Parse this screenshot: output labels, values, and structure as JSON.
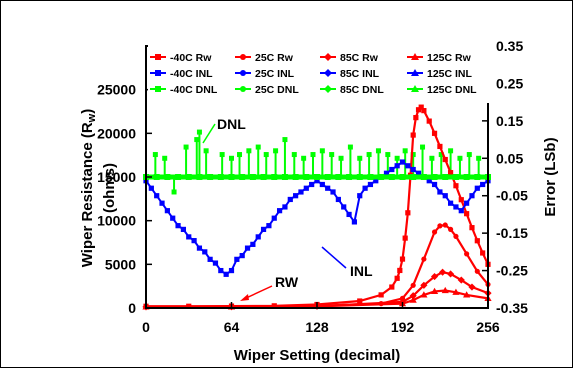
{
  "chart_data": {
    "type": "line",
    "xlabel": "Wiper Setting (decimal)",
    "ylabel_left": "Wiper Resistance (R w) (ohms)",
    "ylabel_left_line1": "Wiper Resistance (R",
    "ylabel_left_sub": "w",
    "ylabel_left_close": ")",
    "ylabel_left_line2": "(ohms)",
    "ylabel_right": "Error (LSb)",
    "xlim": [
      0,
      256
    ],
    "ylim_left": [
      0,
      30000
    ],
    "ylim_right": [
      -0.35,
      0.35
    ],
    "xticks": [
      "0",
      "64",
      "128",
      "192",
      "256"
    ],
    "xtick_values": [
      0,
      64,
      128,
      192,
      256
    ],
    "yticks_left": [
      "0",
      "5000",
      "10000",
      "15000",
      "20000",
      "25000"
    ],
    "ytick_left_values": [
      0,
      5000,
      10000,
      15000,
      20000,
      25000
    ],
    "yticks_right": [
      "0.35",
      "0.25",
      "0.15",
      "0.05",
      "-0.05",
      "-0.15",
      "-0.25",
      "-0.35"
    ],
    "ytick_right_values": [
      0.35,
      0.25,
      0.15,
      0.05,
      -0.05,
      -0.15,
      -0.25,
      -0.35
    ],
    "grid": false,
    "legend_position": "top-right",
    "legend_columns": 4,
    "annotations": [
      {
        "text": "DNL",
        "x": 40,
        "y": 18800,
        "axis": "left"
      },
      {
        "text": "INL",
        "x": 152,
        "y": 3100,
        "axis": "left"
      },
      {
        "text": "RW",
        "x": 90,
        "y": 2000,
        "axis": "left"
      }
    ],
    "series": [
      {
        "name": "-40C Rw",
        "color": "#ff0000",
        "marker": "square",
        "axis": "left",
        "x": [
          0,
          32,
          64,
          96,
          128,
          160,
          176,
          184,
          188,
          190,
          192,
          194,
          196,
          198,
          200,
          202,
          204,
          206,
          208,
          212,
          216,
          220,
          224,
          228,
          232,
          236,
          240,
          244,
          248,
          252,
          256
        ],
        "y": [
          200,
          200,
          220,
          250,
          400,
          800,
          1500,
          2400,
          3400,
          4300,
          5600,
          8000,
          10900,
          15200,
          19800,
          21800,
          22700,
          23000,
          22600,
          21400,
          20000,
          18500,
          17000,
          15500,
          14000,
          12400,
          10800,
          9200,
          7700,
          6300,
          5000
        ]
      },
      {
        "name": "25C Rw",
        "color": "#ff0000",
        "marker": "circle",
        "axis": "left",
        "x": [
          0,
          64,
          128,
          176,
          192,
          200,
          208,
          216,
          220,
          224,
          228,
          232,
          240,
          248,
          256
        ],
        "y": [
          150,
          160,
          250,
          500,
          1100,
          2600,
          5600,
          8700,
          9400,
          9500,
          9000,
          8200,
          6200,
          4200,
          2700
        ]
      },
      {
        "name": "85C Rw",
        "color": "#ff0000",
        "marker": "diamond",
        "axis": "left",
        "x": [
          0,
          64,
          128,
          192,
          200,
          208,
          216,
          222,
          228,
          236,
          244,
          256
        ],
        "y": [
          130,
          140,
          200,
          700,
          1400,
          2600,
          3600,
          4100,
          3900,
          3200,
          2400,
          1700
        ]
      },
      {
        "name": "125C Rw",
        "color": "#ff0000",
        "marker": "triangle",
        "axis": "left",
        "x": [
          0,
          64,
          128,
          192,
          200,
          208,
          216,
          224,
          232,
          240,
          256
        ],
        "y": [
          120,
          130,
          180,
          500,
          900,
          1500,
          1900,
          2000,
          1800,
          1500,
          1100
        ]
      },
      {
        "name": "-40C INL",
        "color": "#0000ff",
        "marker": "square",
        "axis": "right",
        "x": [
          0,
          4,
          8,
          12,
          16,
          20,
          24,
          28,
          32,
          36,
          40,
          44,
          48,
          52,
          56,
          60,
          64,
          68,
          72,
          76,
          80,
          84,
          88,
          92,
          96,
          100,
          104,
          108,
          112,
          116,
          120,
          124,
          128,
          132,
          136,
          140,
          144,
          148,
          152,
          156,
          160,
          164,
          168,
          172,
          176,
          180,
          184,
          188,
          192,
          196,
          200,
          204,
          208,
          212,
          216,
          220,
          224,
          228,
          232,
          236,
          240,
          244,
          248,
          252,
          256
        ],
        "y": [
          -0.01,
          -0.03,
          -0.05,
          -0.07,
          -0.09,
          -0.11,
          -0.13,
          -0.14,
          -0.16,
          -0.17,
          -0.19,
          -0.2,
          -0.22,
          -0.23,
          -0.25,
          -0.26,
          -0.25,
          -0.22,
          -0.21,
          -0.19,
          -0.18,
          -0.16,
          -0.14,
          -0.13,
          -0.11,
          -0.09,
          -0.08,
          -0.06,
          -0.05,
          -0.04,
          -0.03,
          -0.02,
          -0.01,
          -0.02,
          -0.03,
          -0.04,
          -0.06,
          -0.08,
          -0.1,
          -0.12,
          -0.05,
          -0.03,
          -0.02,
          -0.01,
          0.0,
          0.01,
          0.02,
          0.03,
          0.04,
          0.03,
          0.02,
          0.01,
          0.0,
          -0.01,
          -0.02,
          -0.04,
          -0.05,
          -0.07,
          -0.08,
          -0.09,
          -0.07,
          -0.05,
          -0.03,
          -0.02,
          -0.01
        ]
      },
      {
        "name": "25C INL",
        "color": "#0000ff",
        "marker": "circle",
        "axis": "right"
      },
      {
        "name": "85C INL",
        "color": "#0000ff",
        "marker": "diamond",
        "axis": "right"
      },
      {
        "name": "125C INL",
        "color": "#0000ff",
        "marker": "triangle",
        "axis": "right"
      },
      {
        "name": "-40C DNL",
        "color": "#00ff00",
        "marker": "square",
        "axis": "right",
        "x": [
          0,
          8,
          16,
          24,
          32,
          40,
          48,
          56,
          64,
          72,
          80,
          88,
          96,
          104,
          112,
          120,
          128,
          136,
          144,
          152,
          160,
          168,
          176,
          184,
          192,
          200,
          208,
          216,
          224,
          232,
          240,
          248,
          256
        ],
        "y": [
          0.0,
          0.0,
          0.0,
          0.0,
          0.0,
          0.0,
          0.0,
          0.0,
          0.0,
          0.0,
          0.0,
          0.0,
          0.0,
          0.0,
          0.0,
          0.0,
          0.0,
          0.0,
          0.0,
          0.0,
          0.0,
          0.0,
          0.0,
          0.0,
          0.0,
          0.0,
          0.0,
          0.0,
          0.0,
          0.0,
          0.0,
          0.0,
          0.0
        ]
      },
      {
        "name": "25C DNL",
        "color": "#00ff00",
        "marker": "circle",
        "axis": "right"
      },
      {
        "name": "85C DNL",
        "color": "#00ff00",
        "marker": "diamond",
        "axis": "right"
      },
      {
        "name": "125C DNL",
        "color": "#00ff00",
        "marker": "triangle",
        "axis": "right"
      }
    ],
    "dnl_spikes": {
      "x": [
        7,
        14,
        21,
        30,
        38,
        40,
        45,
        57,
        64,
        70,
        77,
        84,
        90,
        97,
        104,
        111,
        118,
        125,
        132,
        139,
        146,
        153,
        160,
        167,
        174,
        181,
        188,
        194,
        200,
        207,
        214,
        221,
        228,
        235,
        242,
        249
      ],
      "y": [
        0.06,
        0.05,
        -0.04,
        0.08,
        0.1,
        0.12,
        0.07,
        0.06,
        0.05,
        0.06,
        0.07,
        0.08,
        0.06,
        0.07,
        0.1,
        0.06,
        0.05,
        0.06,
        0.07,
        0.06,
        0.05,
        0.08,
        0.05,
        0.06,
        0.07,
        0.06,
        0.05,
        0.07,
        0.06,
        0.08,
        0.05,
        0.06,
        0.07,
        0.05,
        0.06,
        0.05
      ]
    }
  }
}
